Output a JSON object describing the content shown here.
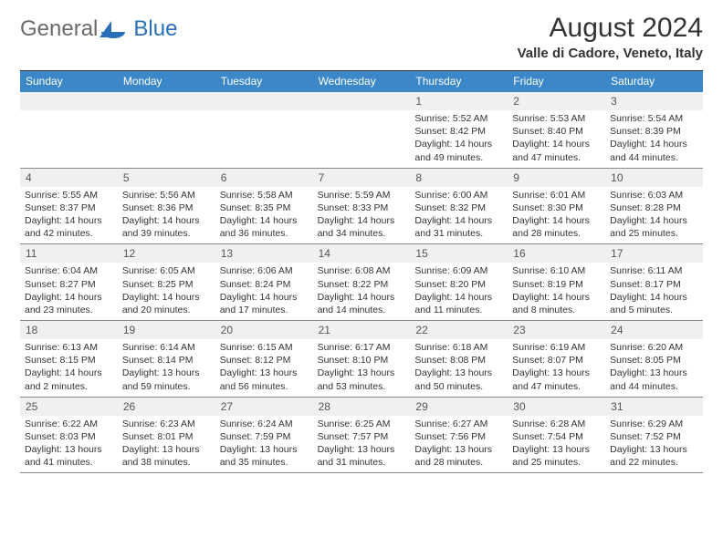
{
  "colors": {
    "header_bg": "#3b87c8",
    "header_text": "#ffffff",
    "daynum_bg": "#eef0f1",
    "border": "#888888",
    "top_border": "#333333",
    "logo_gray": "#6a6a6a",
    "logo_blue": "#2a70b8"
  },
  "logo": {
    "text_gray": "General",
    "text_blue": "Blue"
  },
  "title": "August 2024",
  "location": "Valle di Cadore, Veneto, Italy",
  "day_headers": [
    "Sunday",
    "Monday",
    "Tuesday",
    "Wednesday",
    "Thursday",
    "Friday",
    "Saturday"
  ],
  "layout": {
    "columns": 7,
    "rows": 5,
    "cell_font_size_pt": 8,
    "header_font_size_pt": 9,
    "title_font_size_pt": 22,
    "location_font_size_pt": 11
  },
  "weeks": [
    [
      {
        "day": "",
        "sunrise": "",
        "sunset": "",
        "daylight": ""
      },
      {
        "day": "",
        "sunrise": "",
        "sunset": "",
        "daylight": ""
      },
      {
        "day": "",
        "sunrise": "",
        "sunset": "",
        "daylight": ""
      },
      {
        "day": "",
        "sunrise": "",
        "sunset": "",
        "daylight": ""
      },
      {
        "day": "1",
        "sunrise": "Sunrise: 5:52 AM",
        "sunset": "Sunset: 8:42 PM",
        "daylight": "Daylight: 14 hours and 49 minutes."
      },
      {
        "day": "2",
        "sunrise": "Sunrise: 5:53 AM",
        "sunset": "Sunset: 8:40 PM",
        "daylight": "Daylight: 14 hours and 47 minutes."
      },
      {
        "day": "3",
        "sunrise": "Sunrise: 5:54 AM",
        "sunset": "Sunset: 8:39 PM",
        "daylight": "Daylight: 14 hours and 44 minutes."
      }
    ],
    [
      {
        "day": "4",
        "sunrise": "Sunrise: 5:55 AM",
        "sunset": "Sunset: 8:37 PM",
        "daylight": "Daylight: 14 hours and 42 minutes."
      },
      {
        "day": "5",
        "sunrise": "Sunrise: 5:56 AM",
        "sunset": "Sunset: 8:36 PM",
        "daylight": "Daylight: 14 hours and 39 minutes."
      },
      {
        "day": "6",
        "sunrise": "Sunrise: 5:58 AM",
        "sunset": "Sunset: 8:35 PM",
        "daylight": "Daylight: 14 hours and 36 minutes."
      },
      {
        "day": "7",
        "sunrise": "Sunrise: 5:59 AM",
        "sunset": "Sunset: 8:33 PM",
        "daylight": "Daylight: 14 hours and 34 minutes."
      },
      {
        "day": "8",
        "sunrise": "Sunrise: 6:00 AM",
        "sunset": "Sunset: 8:32 PM",
        "daylight": "Daylight: 14 hours and 31 minutes."
      },
      {
        "day": "9",
        "sunrise": "Sunrise: 6:01 AM",
        "sunset": "Sunset: 8:30 PM",
        "daylight": "Daylight: 14 hours and 28 minutes."
      },
      {
        "day": "10",
        "sunrise": "Sunrise: 6:03 AM",
        "sunset": "Sunset: 8:28 PM",
        "daylight": "Daylight: 14 hours and 25 minutes."
      }
    ],
    [
      {
        "day": "11",
        "sunrise": "Sunrise: 6:04 AM",
        "sunset": "Sunset: 8:27 PM",
        "daylight": "Daylight: 14 hours and 23 minutes."
      },
      {
        "day": "12",
        "sunrise": "Sunrise: 6:05 AM",
        "sunset": "Sunset: 8:25 PM",
        "daylight": "Daylight: 14 hours and 20 minutes."
      },
      {
        "day": "13",
        "sunrise": "Sunrise: 6:06 AM",
        "sunset": "Sunset: 8:24 PM",
        "daylight": "Daylight: 14 hours and 17 minutes."
      },
      {
        "day": "14",
        "sunrise": "Sunrise: 6:08 AM",
        "sunset": "Sunset: 8:22 PM",
        "daylight": "Daylight: 14 hours and 14 minutes."
      },
      {
        "day": "15",
        "sunrise": "Sunrise: 6:09 AM",
        "sunset": "Sunset: 8:20 PM",
        "daylight": "Daylight: 14 hours and 11 minutes."
      },
      {
        "day": "16",
        "sunrise": "Sunrise: 6:10 AM",
        "sunset": "Sunset: 8:19 PM",
        "daylight": "Daylight: 14 hours and 8 minutes."
      },
      {
        "day": "17",
        "sunrise": "Sunrise: 6:11 AM",
        "sunset": "Sunset: 8:17 PM",
        "daylight": "Daylight: 14 hours and 5 minutes."
      }
    ],
    [
      {
        "day": "18",
        "sunrise": "Sunrise: 6:13 AM",
        "sunset": "Sunset: 8:15 PM",
        "daylight": "Daylight: 14 hours and 2 minutes."
      },
      {
        "day": "19",
        "sunrise": "Sunrise: 6:14 AM",
        "sunset": "Sunset: 8:14 PM",
        "daylight": "Daylight: 13 hours and 59 minutes."
      },
      {
        "day": "20",
        "sunrise": "Sunrise: 6:15 AM",
        "sunset": "Sunset: 8:12 PM",
        "daylight": "Daylight: 13 hours and 56 minutes."
      },
      {
        "day": "21",
        "sunrise": "Sunrise: 6:17 AM",
        "sunset": "Sunset: 8:10 PM",
        "daylight": "Daylight: 13 hours and 53 minutes."
      },
      {
        "day": "22",
        "sunrise": "Sunrise: 6:18 AM",
        "sunset": "Sunset: 8:08 PM",
        "daylight": "Daylight: 13 hours and 50 minutes."
      },
      {
        "day": "23",
        "sunrise": "Sunrise: 6:19 AM",
        "sunset": "Sunset: 8:07 PM",
        "daylight": "Daylight: 13 hours and 47 minutes."
      },
      {
        "day": "24",
        "sunrise": "Sunrise: 6:20 AM",
        "sunset": "Sunset: 8:05 PM",
        "daylight": "Daylight: 13 hours and 44 minutes."
      }
    ],
    [
      {
        "day": "25",
        "sunrise": "Sunrise: 6:22 AM",
        "sunset": "Sunset: 8:03 PM",
        "daylight": "Daylight: 13 hours and 41 minutes."
      },
      {
        "day": "26",
        "sunrise": "Sunrise: 6:23 AM",
        "sunset": "Sunset: 8:01 PM",
        "daylight": "Daylight: 13 hours and 38 minutes."
      },
      {
        "day": "27",
        "sunrise": "Sunrise: 6:24 AM",
        "sunset": "Sunset: 7:59 PM",
        "daylight": "Daylight: 13 hours and 35 minutes."
      },
      {
        "day": "28",
        "sunrise": "Sunrise: 6:25 AM",
        "sunset": "Sunset: 7:57 PM",
        "daylight": "Daylight: 13 hours and 31 minutes."
      },
      {
        "day": "29",
        "sunrise": "Sunrise: 6:27 AM",
        "sunset": "Sunset: 7:56 PM",
        "daylight": "Daylight: 13 hours and 28 minutes."
      },
      {
        "day": "30",
        "sunrise": "Sunrise: 6:28 AM",
        "sunset": "Sunset: 7:54 PM",
        "daylight": "Daylight: 13 hours and 25 minutes."
      },
      {
        "day": "31",
        "sunrise": "Sunrise: 6:29 AM",
        "sunset": "Sunset: 7:52 PM",
        "daylight": "Daylight: 13 hours and 22 minutes."
      }
    ]
  ]
}
